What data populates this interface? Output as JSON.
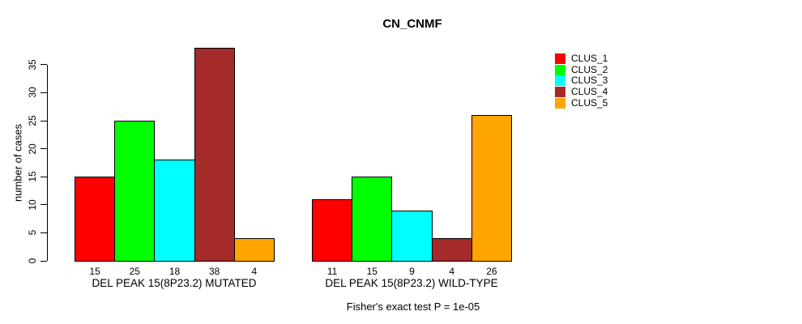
{
  "chart_data": {
    "type": "bar",
    "title": "CN_CNMF",
    "ylabel": "number of cases",
    "xlabel": "",
    "ylim": [
      0,
      38
    ],
    "yticks": [
      0,
      5,
      10,
      15,
      20,
      25,
      30,
      35
    ],
    "grid": false,
    "legend_position": "right-outside",
    "bar_value_labels_shown": true,
    "categories": [
      "DEL PEAK 15(8P23.2) MUTATED",
      "DEL PEAK 15(8P23.2) WILD-TYPE"
    ],
    "series": [
      {
        "name": "CLUS_1",
        "color": "#FF0000",
        "values": [
          15,
          11
        ]
      },
      {
        "name": "CLUS_2",
        "color": "#00FF00",
        "values": [
          25,
          15
        ]
      },
      {
        "name": "CLUS_3",
        "color": "#00FFFF",
        "values": [
          18,
          9
        ]
      },
      {
        "name": "CLUS_4",
        "color": "#A52A2A",
        "values": [
          38,
          4
        ]
      },
      {
        "name": "CLUS_5",
        "color": "#FFA500",
        "values": [
          4,
          26
        ]
      }
    ],
    "annotation": "Fisher's exact test P = 1e-05"
  }
}
